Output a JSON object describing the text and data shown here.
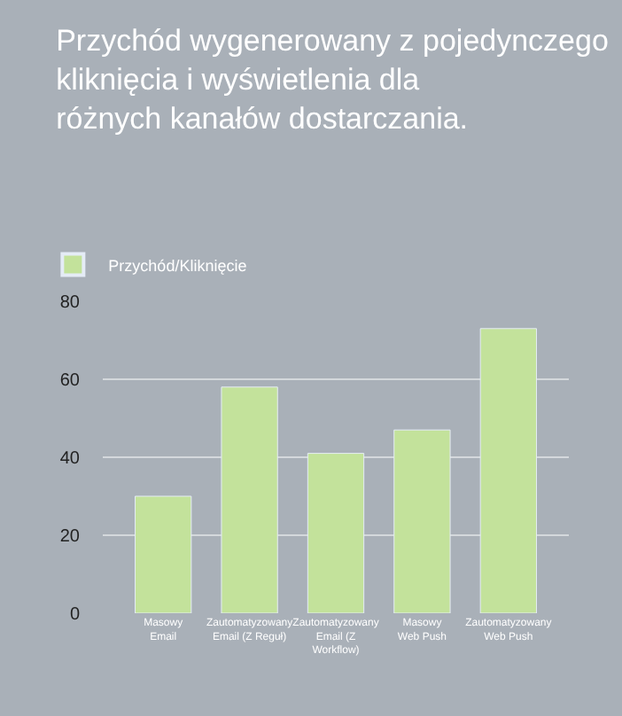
{
  "chart_data": {
    "type": "bar",
    "title": "Przychód wygenerowany z pojedynczego kliknięcia i wyświetlenia dla różnych kanałów dostarczania.",
    "categories": [
      "Masowy Email",
      "Zautomatyzowany Email (Z Reguł)",
      "Zautomatyzowany Email (Z Workflow)",
      "Masowy Web Push",
      "Zautomatyzowany Web Push"
    ],
    "series": [
      {
        "name": "Przychód/Kliknięcie",
        "color": "#c3e29b",
        "values": [
          30,
          58,
          41,
          47,
          73
        ]
      }
    ],
    "ylim": [
      0,
      80
    ],
    "yticks": [
      0,
      20,
      40,
      60,
      80
    ],
    "grid": "y",
    "legend": "top left"
  }
}
